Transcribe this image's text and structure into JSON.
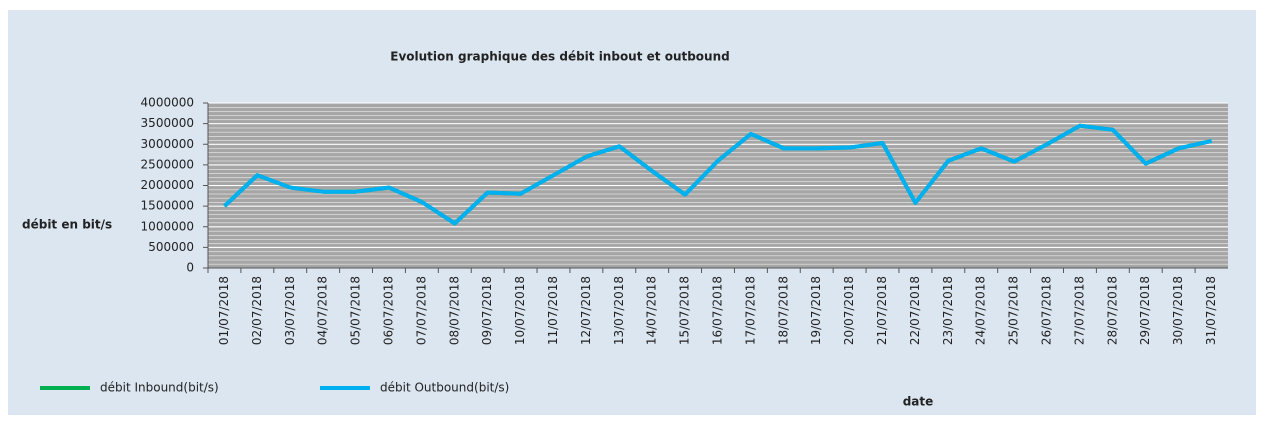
{
  "chart_data": {
    "type": "line",
    "title": "Evolution graphique des débit inbout et outbound",
    "y_label": "débit en bit/s",
    "x_label": "date",
    "categories": [
      "01/07/2018",
      "02/07/2018",
      "03/07/2018",
      "04/07/2018",
      "05/07/2018",
      "06/07/2018",
      "07/07/2018",
      "08/07/2018",
      "09/07/2018",
      "10/07/2018",
      "11/07/2018",
      "12/07/2018",
      "13/07/2018",
      "14/07/2018",
      "15/07/2018",
      "16/07/2018",
      "17/07/2018",
      "18/07/2018",
      "19/07/2018",
      "20/07/2018",
      "21/07/2018",
      "22/07/2018",
      "23/07/2018",
      "24/07/2018",
      "25/07/2018",
      "26/07/2018",
      "27/07/2018",
      "28/07/2018",
      "29/07/2018",
      "30/07/2018",
      "31/07/2018"
    ],
    "series": [
      {
        "name": "débit Inbound(bit/s)",
        "color": "#00b050",
        "values": [
          1500000,
          2250000,
          1950000,
          1850000,
          1850000,
          1950000,
          1600000,
          1080000,
          1830000,
          1800000,
          2250000,
          2700000,
          2950000,
          2350000,
          1780000,
          2600000,
          3250000,
          2900000,
          2900000,
          2920000,
          3030000,
          1580000,
          2600000,
          2900000,
          2580000,
          3000000,
          3450000,
          3350000,
          2530000,
          2900000,
          3080000
        ]
      },
      {
        "name": "débit Outbound(bit/s)",
        "color": "#00b0f0",
        "values": [
          1500000,
          2250000,
          1950000,
          1850000,
          1850000,
          1950000,
          1600000,
          1080000,
          1830000,
          1800000,
          2250000,
          2700000,
          2950000,
          2350000,
          1780000,
          2600000,
          3250000,
          2900000,
          2900000,
          2920000,
          3030000,
          1580000,
          2600000,
          2900000,
          2580000,
          3000000,
          3450000,
          3350000,
          2530000,
          2900000,
          3080000
        ]
      }
    ],
    "ylim": [
      0,
      4000000
    ],
    "yticks": [
      0,
      500000,
      1000000,
      1500000,
      2000000,
      2500000,
      3000000,
      3500000,
      4000000
    ],
    "grid": true,
    "legend": "bottom-left"
  }
}
